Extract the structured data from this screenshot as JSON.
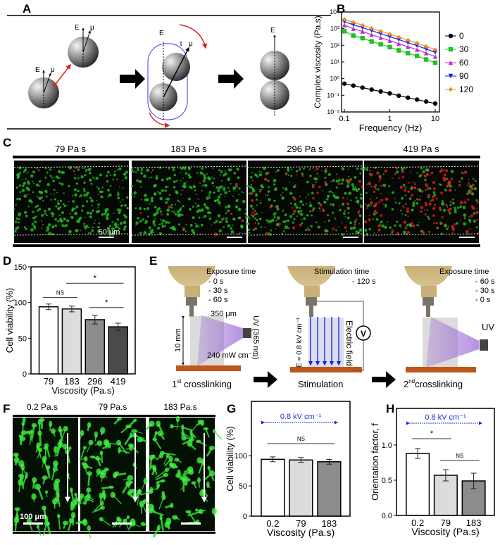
{
  "panels": {
    "A": "A",
    "B": "B",
    "C": "C",
    "D": "D",
    "E": "E",
    "F": "F",
    "G": "G",
    "H": "H"
  },
  "panel_a": {
    "e_label": "E",
    "mu_label": "μ",
    "tau_label": "τ"
  },
  "panel_c": {
    "titles": [
      "79 Pa s",
      "183 Pa s",
      "296 Pa s",
      "419 Pa s"
    ],
    "scale_bar": "50 μm",
    "colors": {
      "live": "#22c022",
      "dead": "#e02020"
    }
  },
  "panel_e": {
    "step1": {
      "time_title": "Exposure time",
      "times": [
        "- 0 s",
        "- 30 s",
        "- 60 s"
      ],
      "width": "350 μm",
      "height": "10 mm",
      "uv": "UV (365 nm)",
      "intensity": "240 mW cm⁻¹",
      "caption_pre": "1",
      "caption_sup": "st",
      "caption": " crosslinking"
    },
    "step2": {
      "time_title": "Stimulation time",
      "times": [
        "- 120 s"
      ],
      "field": "E = 0.8 kV cm⁻¹",
      "field_label": "Electric field",
      "voltmeter": "V",
      "caption": "Stimulation"
    },
    "step3": {
      "time_title": "Exposure time",
      "times": [
        "- 60 s",
        "- 30 s",
        "- 0 s"
      ],
      "uv": "UV",
      "caption_pre": "2",
      "caption_sup": "nd",
      "caption": "crosslinking"
    }
  },
  "panel_f": {
    "titles": [
      "0.2 Pa.s",
      "79 Pa.s",
      "183 Pa.s"
    ],
    "scale_bar": "100 μm"
  },
  "chart_data": [
    {
      "id": "B",
      "type": "line",
      "xscale": "log",
      "yscale": "log",
      "xlabel": "Frequency (Hz)",
      "ylabel": "Complex viscosity (Pa.s)",
      "xlim": [
        0.1,
        10
      ],
      "ylim": [
        0.01,
        10000
      ],
      "xticks": [
        {
          "v": 0.1,
          "t": "0.1"
        },
        {
          "v": 1,
          "t": "1"
        },
        {
          "v": 10,
          "t": "10"
        }
      ],
      "yticks": [
        {
          "v": 0.01,
          "t": "10⁻²"
        },
        {
          "v": 0.1,
          "t": "10⁻¹"
        },
        {
          "v": 1,
          "t": "10⁰"
        },
        {
          "v": 10,
          "t": "10¹"
        },
        {
          "v": 100,
          "t": "10²"
        },
        {
          "v": 1000,
          "t": "10³"
        },
        {
          "v": 10000,
          "t": "10⁴"
        }
      ],
      "x": [
        0.1,
        0.158,
        0.251,
        0.398,
        0.631,
        1,
        1.58,
        2.51,
        3.98,
        6.31,
        10
      ],
      "legend": "right",
      "series": [
        {
          "name": "0",
          "color": "#000000",
          "marker": "circle",
          "values": [
            0.5,
            0.38,
            0.29,
            0.22,
            0.17,
            0.13,
            0.095,
            0.072,
            0.055,
            0.042,
            0.032
          ]
        },
        {
          "name": "30",
          "color": "#22c022",
          "marker": "square",
          "values": [
            700,
            380,
            270,
            170,
            115,
            78,
            50,
            34,
            23,
            14,
            9
          ]
        },
        {
          "name": "60",
          "color": "#c030d0",
          "marker": "triangle-up",
          "values": [
            1600,
            1000,
            680,
            430,
            290,
            190,
            125,
            82,
            55,
            34,
            21
          ]
        },
        {
          "name": "90",
          "color": "#1020e0",
          "marker": "triangle-down",
          "values": [
            2600,
            1700,
            1150,
            760,
            500,
            330,
            220,
            145,
            95,
            60,
            38
          ]
        },
        {
          "name": "120",
          "color": "#f09020",
          "marker": "diamond",
          "values": [
            3600,
            2400,
            1600,
            1050,
            700,
            470,
            310,
            205,
            135,
            86,
            55
          ]
        }
      ]
    },
    {
      "id": "D",
      "type": "bar",
      "xlabel": "Viscosity (Pa.s)",
      "ylabel": "Cell viability (%)",
      "categories": [
        "79",
        "183",
        "296",
        "419"
      ],
      "values": [
        94,
        91,
        76,
        66
      ],
      "errors": [
        4,
        4,
        6,
        5
      ],
      "colors": [
        "#ffffff",
        "#dcdcdc",
        "#8c8c8c",
        "#4a4a4a"
      ],
      "ylim": [
        0,
        150
      ],
      "yticks": [
        0,
        50,
        100,
        150
      ],
      "significance": [
        {
          "from": 0,
          "to": 1,
          "y": 107,
          "label": "NS"
        },
        {
          "from": 1,
          "to": 3,
          "y": 127,
          "label": "*"
        },
        {
          "from": 2,
          "to": 3,
          "y": 93,
          "label": "*"
        }
      ]
    },
    {
      "id": "G",
      "type": "bar",
      "xlabel": "Viscosity (Pa.s)",
      "ylabel": "Cell viability (%)",
      "categories": [
        "0.2",
        "79",
        "183"
      ],
      "values": [
        94,
        93,
        90
      ],
      "errors": [
        4,
        4,
        4
      ],
      "colors": [
        "#ffffff",
        "#dcdcdc",
        "#8c8c8c"
      ],
      "ylim": [
        0,
        190
      ],
      "yticks": [
        0,
        50,
        100
      ],
      "annotation": {
        "label": "0.8 kV cm⁻¹",
        "y": 155,
        "color": "#2030e0"
      },
      "significance": [
        {
          "from": 0,
          "to": 2,
          "y": 120,
          "label": "NS"
        }
      ]
    },
    {
      "id": "H",
      "type": "bar",
      "xlabel": "Viscosity (Pa.s)",
      "ylabel": "Orientation factor, f",
      "categories": [
        "0.2",
        "79",
        "183"
      ],
      "values": [
        0.88,
        0.57,
        0.49
      ],
      "errors": [
        0.07,
        0.08,
        0.11
      ],
      "colors": [
        "#ffffff",
        "#dcdcdc",
        "#8c8c8c"
      ],
      "ylim": [
        0,
        1.52
      ],
      "yticks": [
        0,
        0.5,
        1.0
      ],
      "ytick_labels": [
        "0.0",
        "0.5",
        "1.0"
      ],
      "annotation": {
        "label": "0.8 kV cm⁻¹",
        "y": 1.31,
        "color": "#2030e0"
      },
      "significance": [
        {
          "from": 0,
          "to": 1,
          "y": 1.09,
          "label": "*"
        },
        {
          "from": 1,
          "to": 2,
          "y": 0.78,
          "label": "NS"
        }
      ]
    }
  ]
}
